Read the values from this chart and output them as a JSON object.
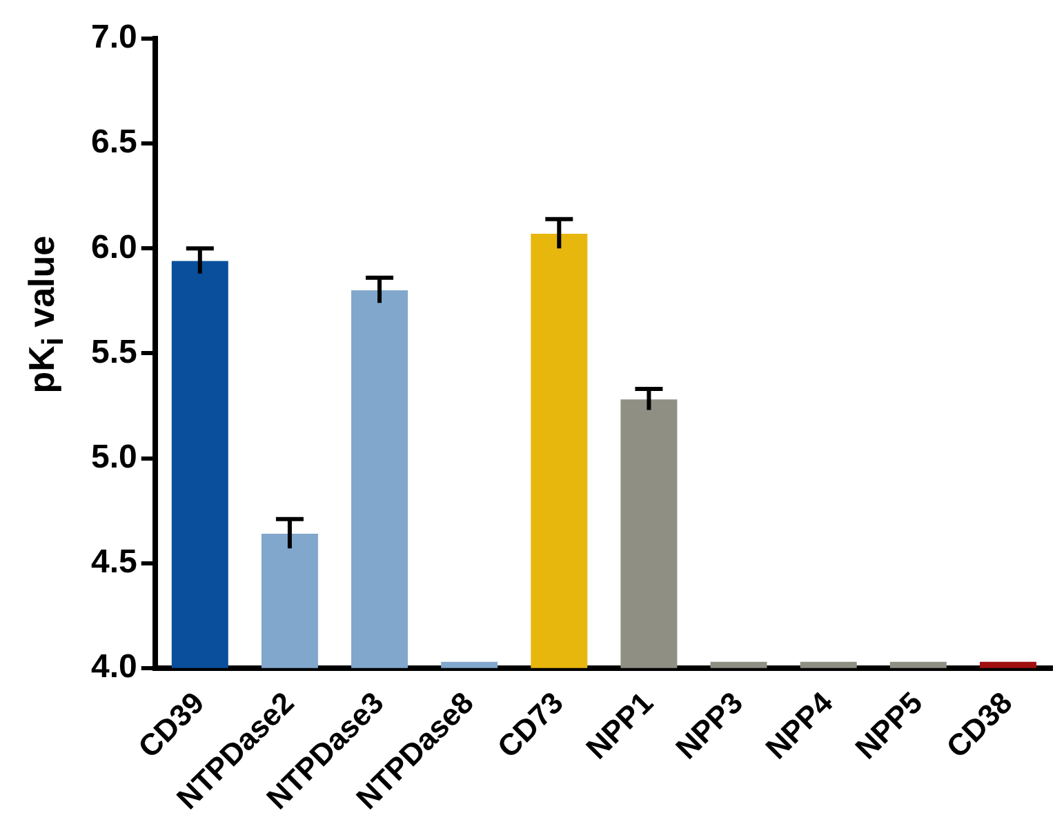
{
  "chart_data": {
    "type": "bar",
    "ylabel": "pK$_{i}$ value",
    "categories": [
      "CD39",
      "NTPDase2",
      "NTPDase3",
      "NTPDase8",
      "CD73",
      "NPP1",
      "NPP3",
      "NPP4",
      "NPP5",
      "CD38"
    ],
    "values": [
      5.94,
      4.64,
      5.8,
      4.03,
      6.07,
      5.28,
      4.03,
      4.03,
      4.03,
      4.03
    ],
    "errors": [
      0.06,
      0.07,
      0.06,
      null,
      0.07,
      0.05,
      null,
      null,
      null,
      null
    ],
    "colors": [
      "#0a4f9c",
      "#82a7cd",
      "#82a7cd",
      "#82a7cd",
      "#e8b70e",
      "#8f8f84",
      "#8f8f84",
      "#8f8f84",
      "#8f8f84",
      "#a01010"
    ],
    "ylim": [
      4.0,
      7.0
    ],
    "yticks": [
      {
        "value": 4.0,
        "label": "4.0"
      },
      {
        "value": 4.5,
        "label": "4.5"
      },
      {
        "value": 5.0,
        "label": "5.0"
      },
      {
        "value": 5.5,
        "label": "5.5"
      },
      {
        "value": 6.0,
        "label": "6.0"
      },
      {
        "value": 6.5,
        "label": "6.5"
      },
      {
        "value": 7.0,
        "label": "7.0"
      }
    ],
    "grid": false,
    "legend": false
  }
}
